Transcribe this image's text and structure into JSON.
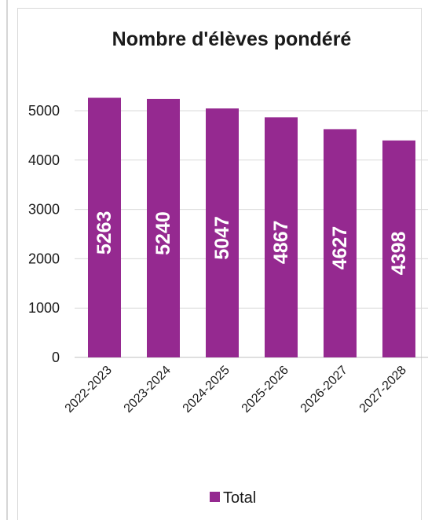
{
  "chart_data": {
    "type": "bar",
    "title": "Nombre d'élèves pondéré",
    "categories": [
      "2022-2023",
      "2023-2024",
      "2024-2025",
      "2025-2026",
      "2026-2027",
      "2027-2028"
    ],
    "series": [
      {
        "name": "Total",
        "values": [
          5263,
          5240,
          5047,
          4867,
          4627,
          4398
        ]
      }
    ],
    "yticks": [
      0,
      1000,
      2000,
      3000,
      4000,
      5000
    ],
    "ylim": [
      0,
      5000
    ],
    "grid": true,
    "legend_position": "bottom",
    "bar_color": "#952990"
  }
}
